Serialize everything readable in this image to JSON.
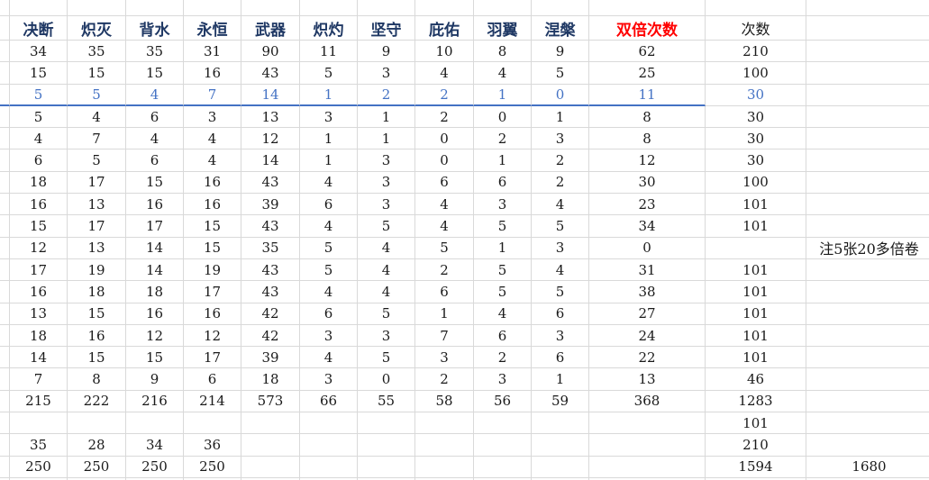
{
  "sheet": {
    "headers": [
      "决断",
      "炽灭",
      "背水",
      "永恒",
      "武器",
      "炽灼",
      "坚守",
      "庇佑",
      "羽翼",
      "涅槃",
      "双倍次数",
      "次数"
    ],
    "header_styles": [
      "navy",
      "navy",
      "navy",
      "navy",
      "navy",
      "navy",
      "navy",
      "navy",
      "navy",
      "navy",
      "red",
      "plain"
    ],
    "colors": {
      "header_text": "#1F3864",
      "double_count_header": "#FF0000",
      "highlight_row": "#4472C4",
      "gridline": "#D9D9D9"
    },
    "rows": [
      {
        "style": "normal",
        "values": [
          "34",
          "35",
          "35",
          "31",
          "90",
          "11",
          "9",
          "10",
          "8",
          "9",
          "62",
          "210",
          ""
        ]
      },
      {
        "style": "normal",
        "values": [
          "15",
          "15",
          "15",
          "16",
          "43",
          "5",
          "3",
          "4",
          "4",
          "5",
          "25",
          "100",
          ""
        ]
      },
      {
        "style": "blue",
        "values": [
          "5",
          "5",
          "4",
          "7",
          "14",
          "1",
          "2",
          "2",
          "1",
          "0",
          "11",
          "30",
          ""
        ]
      },
      {
        "style": "normal",
        "values": [
          "5",
          "4",
          "6",
          "3",
          "13",
          "3",
          "1",
          "2",
          "0",
          "1",
          "8",
          "30",
          ""
        ]
      },
      {
        "style": "normal",
        "values": [
          "4",
          "7",
          "4",
          "4",
          "12",
          "1",
          "1",
          "0",
          "2",
          "3",
          "8",
          "30",
          ""
        ]
      },
      {
        "style": "normal",
        "values": [
          "6",
          "5",
          "6",
          "4",
          "14",
          "1",
          "3",
          "0",
          "1",
          "2",
          "12",
          "30",
          ""
        ]
      },
      {
        "style": "normal",
        "values": [
          "18",
          "17",
          "15",
          "16",
          "43",
          "4",
          "3",
          "6",
          "6",
          "2",
          "30",
          "100",
          ""
        ]
      },
      {
        "style": "normal",
        "values": [
          "16",
          "13",
          "16",
          "16",
          "39",
          "6",
          "3",
          "4",
          "3",
          "4",
          "23",
          "101",
          ""
        ]
      },
      {
        "style": "normal",
        "values": [
          "15",
          "17",
          "17",
          "15",
          "43",
          "4",
          "5",
          "4",
          "5",
          "5",
          "34",
          "101",
          ""
        ]
      },
      {
        "style": "normal",
        "values": [
          "12",
          "13",
          "14",
          "15",
          "35",
          "5",
          "4",
          "5",
          "1",
          "3",
          "0",
          "",
          "注5张20多倍卷"
        ]
      },
      {
        "style": "normal",
        "values": [
          "17",
          "19",
          "14",
          "19",
          "43",
          "5",
          "4",
          "2",
          "5",
          "4",
          "31",
          "101",
          ""
        ]
      },
      {
        "style": "normal",
        "values": [
          "16",
          "18",
          "18",
          "17",
          "43",
          "4",
          "4",
          "6",
          "5",
          "5",
          "38",
          "101",
          ""
        ]
      },
      {
        "style": "normal",
        "values": [
          "13",
          "15",
          "16",
          "16",
          "42",
          "6",
          "5",
          "1",
          "4",
          "6",
          "27",
          "101",
          ""
        ]
      },
      {
        "style": "normal",
        "values": [
          "18",
          "16",
          "12",
          "12",
          "42",
          "3",
          "3",
          "7",
          "6",
          "3",
          "24",
          "101",
          ""
        ]
      },
      {
        "style": "normal",
        "values": [
          "14",
          "15",
          "15",
          "17",
          "39",
          "4",
          "5",
          "3",
          "2",
          "6",
          "22",
          "101",
          ""
        ]
      },
      {
        "style": "normal",
        "values": [
          "7",
          "8",
          "9",
          "6",
          "18",
          "3",
          "0",
          "2",
          "3",
          "1",
          "13",
          "46",
          ""
        ]
      },
      {
        "style": "normal",
        "values": [
          "215",
          "222",
          "216",
          "214",
          "573",
          "66",
          "55",
          "58",
          "56",
          "59",
          "368",
          "1283",
          ""
        ]
      },
      {
        "style": "normal",
        "values": [
          "",
          "",
          "",
          "",
          "",
          "",
          "",
          "",
          "",
          "",
          "",
          "101",
          ""
        ]
      },
      {
        "style": "normal",
        "values": [
          "35",
          "28",
          "34",
          "36",
          "",
          "",
          "",
          "",
          "",
          "",
          "",
          "210",
          ""
        ]
      },
      {
        "style": "normal",
        "values": [
          "250",
          "250",
          "250",
          "250",
          "",
          "",
          "",
          "",
          "",
          "",
          "",
          "1594",
          "1680"
        ]
      },
      {
        "style": "normal",
        "values": [
          "",
          "",
          "",
          "",
          "",
          "",
          "",
          "",
          "",
          "",
          "",
          "",
          ""
        ]
      }
    ]
  }
}
